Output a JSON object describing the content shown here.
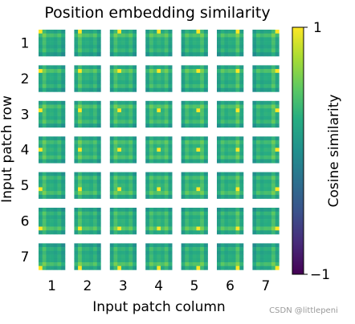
{
  "chart_data": {
    "type": "heatmap",
    "title": "Position embedding similarity",
    "xlabel": "Input patch column",
    "ylabel": "Input patch row",
    "grid_rows": 7,
    "grid_cols": 7,
    "row_tick_labels": [
      "1",
      "2",
      "3",
      "4",
      "5",
      "6",
      "7"
    ],
    "col_tick_labels": [
      "1",
      "2",
      "3",
      "4",
      "5",
      "6",
      "7"
    ],
    "colorbar": {
      "label": "Cosine similarity",
      "min": -1,
      "max": 1,
      "tick_labels": [
        "1",
        "−1"
      ],
      "colormap": "viridis"
    },
    "cell_pattern_size": 7,
    "row_profile": [
      0.42,
      0.82,
      0.55,
      0.62,
      0.55,
      0.82,
      0.42
    ],
    "col_profile": [
      0.42,
      0.82,
      0.55,
      0.62,
      0.55,
      0.82,
      0.42
    ],
    "grid": false
  },
  "watermark": "CSDN @littlepeni"
}
